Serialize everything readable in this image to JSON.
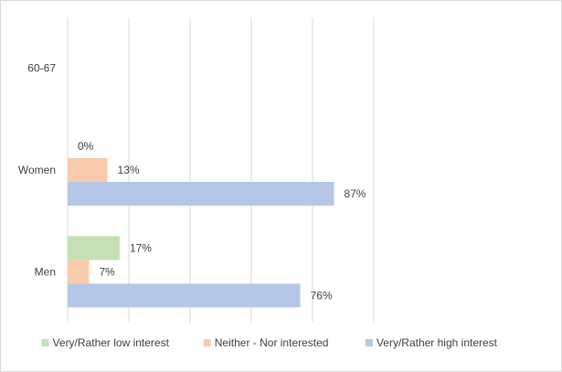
{
  "chart_data": {
    "type": "bar",
    "orientation": "horizontal",
    "categories": [
      "60-67",
      "Women",
      "Men"
    ],
    "series": [
      {
        "name": "Very/Rather low interest",
        "color": "#c5e0b4",
        "values": [
          null,
          0,
          17
        ]
      },
      {
        "name": "Neither - Nor interested",
        "color": "#f8cbad",
        "values": [
          null,
          13,
          7
        ]
      },
      {
        "name": "Very/Rather high interest",
        "color": "#b4c7e7",
        "values": [
          null,
          87,
          76
        ]
      }
    ],
    "data_labels": [
      [
        null,
        "0%",
        "17%"
      ],
      [
        null,
        "13%",
        "7%"
      ],
      [
        null,
        "87%",
        "76%"
      ]
    ],
    "xlim": [
      0,
      100
    ],
    "grid": true,
    "legend_position": "bottom",
    "title": "",
    "xlabel": "",
    "ylabel": ""
  }
}
